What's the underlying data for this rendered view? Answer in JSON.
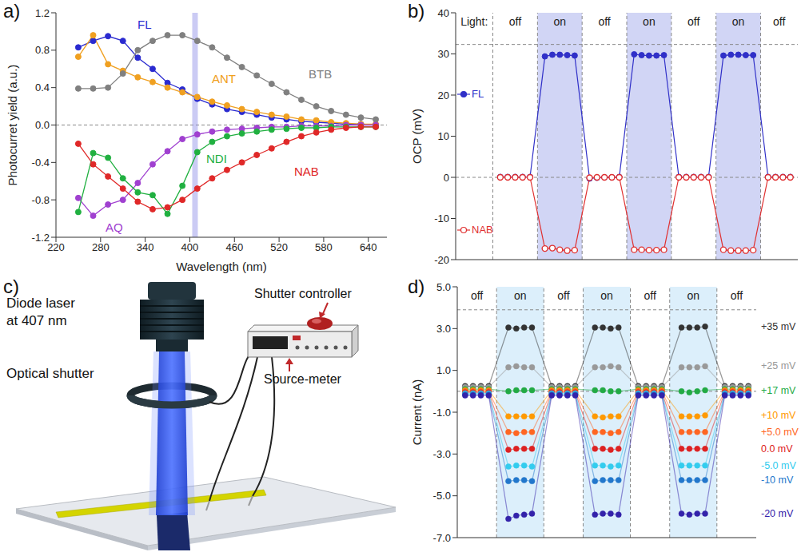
{
  "chart_data": [
    {
      "panel": "a)",
      "type": "line",
      "x_label": "Wavelength (nm)",
      "y_label": "Photocurret yield (a.u.)",
      "x": [
        250,
        270,
        290,
        310,
        330,
        350,
        370,
        390,
        410,
        430,
        450,
        470,
        490,
        510,
        530,
        550,
        570,
        590,
        610,
        630,
        650
      ],
      "series": [
        {
          "name": "FL",
          "color": "#2a2ad0",
          "marker": "circle",
          "values": [
            0.83,
            0.9,
            0.95,
            0.9,
            0.72,
            0.6,
            0.45,
            0.38,
            0.28,
            0.22,
            0.17,
            0.14,
            0.11,
            0.08,
            0.06,
            0.04,
            0.03,
            0.02,
            0.01,
            0.01,
            0.0
          ]
        },
        {
          "name": "ANT",
          "color": "#f0a020",
          "marker": "circle",
          "values": [
            0.73,
            0.96,
            0.65,
            0.58,
            0.51,
            0.46,
            0.4,
            0.35,
            0.3,
            0.25,
            0.21,
            0.17,
            0.14,
            0.11,
            0.09,
            0.06,
            0.05,
            0.03,
            0.02,
            0.01,
            0.01
          ]
        },
        {
          "name": "BTB",
          "color": "#808080",
          "marker": "circle",
          "values": [
            0.39,
            0.39,
            0.4,
            0.55,
            0.8,
            0.9,
            0.96,
            0.96,
            0.9,
            0.83,
            0.72,
            0.62,
            0.53,
            0.44,
            0.35,
            0.27,
            0.2,
            0.15,
            0.11,
            0.08,
            0.06
          ]
        },
        {
          "name": "AQ",
          "color": "#a040d0",
          "marker": "circle",
          "values": [
            -0.78,
            -0.97,
            -0.85,
            -0.8,
            -0.62,
            -0.42,
            -0.28,
            -0.15,
            -0.1,
            -0.07,
            -0.05,
            -0.04,
            -0.03,
            -0.02,
            -0.02,
            -0.01,
            -0.01,
            -0.01,
            0.0,
            0.0,
            0.0
          ]
        },
        {
          "name": "NDI",
          "color": "#20b040",
          "marker": "circle",
          "values": [
            -0.93,
            -0.3,
            -0.35,
            -0.57,
            -0.72,
            -0.75,
            -0.95,
            -0.65,
            -0.29,
            -0.18,
            -0.12,
            -0.09,
            -0.07,
            -0.05,
            -0.04,
            -0.03,
            -0.03,
            -0.02,
            -0.02,
            -0.02,
            -0.02
          ]
        },
        {
          "name": "NAB",
          "color": "#e02828",
          "marker": "circle",
          "values": [
            -0.2,
            -0.42,
            -0.55,
            -0.68,
            -0.82,
            -0.9,
            -0.88,
            -0.8,
            -0.68,
            -0.57,
            -0.48,
            -0.4,
            -0.32,
            -0.25,
            -0.18,
            -0.12,
            -0.08,
            -0.05,
            -0.03,
            -0.02,
            -0.02
          ]
        }
      ],
      "xlim": [
        220,
        665
      ],
      "xticks": [
        220,
        280,
        340,
        400,
        460,
        520,
        580,
        640
      ],
      "ylim": [
        -1.2,
        1.2
      ],
      "yticks": [
        -1.2,
        -0.8,
        -0.4,
        {
          "value": 0,
          "label": "0.0"
        },
        0.4,
        0.8,
        1.2
      ],
      "reference_lines": [
        0
      ],
      "highlight_x": 407
    },
    {
      "panel": "b)",
      "type": "line",
      "y_label": "OCP (mV)",
      "light_label": "Light:",
      "legend": "left",
      "tick_labels": "y",
      "x": [
        6,
        7,
        8,
        9,
        10,
        12,
        13,
        14,
        15,
        16,
        18,
        19,
        20,
        21,
        22,
        24,
        25,
        26,
        27,
        28,
        30,
        31,
        32,
        33,
        34,
        36,
        37,
        38,
        39,
        40,
        42,
        43,
        44,
        45
      ],
      "series": [
        {
          "name": "FL",
          "color": "#3030c8",
          "marker": "circle",
          "values": [
            0.1,
            0.1,
            0.1,
            0.1,
            0.1,
            29.4,
            29.8,
            29.8,
            29.7,
            29.6,
            -0.3,
            -0.1,
            0.0,
            0.0,
            0.1,
            29.9,
            29.7,
            29.6,
            29.6,
            29.7,
            0.1,
            0.1,
            0.1,
            0.1,
            0.1,
            29.6,
            29.8,
            29.8,
            29.7,
            29.7,
            0.1,
            0.1,
            0.1,
            0.1
          ]
        },
        {
          "name": "NAB",
          "color": "#e03030",
          "marker": "open_circle",
          "values": [
            0.0,
            0.0,
            0.0,
            0.0,
            0.0,
            -17.3,
            -17.2,
            -17.6,
            -17.8,
            -17.7,
            -0.1,
            0.0,
            0.0,
            0.0,
            0.0,
            -17.6,
            -17.6,
            -17.7,
            -17.7,
            -17.6,
            0.0,
            0.0,
            0.0,
            0.0,
            0.0,
            -17.6,
            -17.8,
            -17.8,
            -17.8,
            -17.7,
            0.0,
            0.0,
            0.0,
            0.0
          ]
        }
      ],
      "regions": [
        {
          "label": "off",
          "from": 5,
          "to": 11
        },
        {
          "label": "on",
          "from": 11,
          "to": 17,
          "color": "#c9cef3"
        },
        {
          "label": "off",
          "from": 17,
          "to": 23
        },
        {
          "label": "on",
          "from": 23,
          "to": 29,
          "color": "#c9cef3"
        },
        {
          "label": "off",
          "from": 29,
          "to": 35
        },
        {
          "label": "on",
          "from": 35,
          "to": 41,
          "color": "#c9cef3"
        },
        {
          "label": "off",
          "from": 41,
          "to": 46
        }
      ],
      "xlim": [
        0,
        46
      ],
      "ylim": [
        -20,
        40
      ],
      "yticks": [
        -20,
        -10,
        0,
        10,
        20,
        30,
        40
      ],
      "reference_lines": [
        0,
        32.3
      ]
    },
    {
      "panel": "d)",
      "type": "line",
      "y_label": "Current (nA)",
      "tick_labels": "y",
      "x": [
        1,
        2,
        3,
        4,
        6.5,
        7.5,
        8.5,
        9.5,
        12,
        13,
        14,
        15,
        17.5,
        18.5,
        19.5,
        20.5,
        23,
        24,
        25,
        26,
        28.5,
        29.5,
        30.5,
        31.5,
        34,
        35,
        36,
        37
      ],
      "series": [
        {
          "name": "+35 mV",
          "color": "#333333",
          "marker": "circle",
          "values": [
            0.25,
            0.25,
            0.25,
            0.25,
            3.05,
            3.0,
            3.05,
            3.05,
            0.25,
            0.25,
            0.25,
            0.25,
            3.05,
            3.05,
            3.0,
            3.05,
            0.25,
            0.25,
            0.25,
            0.25,
            3.05,
            3.05,
            3.05,
            3.1,
            0.25,
            0.25,
            0.25,
            0.25
          ]
        },
        {
          "name": "+25 mV",
          "color": "#999999",
          "marker": "circle",
          "values": [
            0.2,
            0.2,
            0.2,
            0.2,
            1.15,
            1.2,
            1.15,
            1.15,
            0.2,
            0.2,
            0.2,
            0.2,
            1.15,
            1.15,
            1.2,
            1.15,
            0.2,
            0.2,
            0.2,
            0.2,
            1.15,
            1.15,
            1.15,
            1.2,
            0.2,
            0.2,
            0.2,
            0.2
          ]
        },
        {
          "name": "+17 mV",
          "color": "#22aa44",
          "marker": "circle",
          "values": [
            0.1,
            0.1,
            0.1,
            0.1,
            0.0,
            0.05,
            0.05,
            0.05,
            0.1,
            0.1,
            0.1,
            0.1,
            0.05,
            0.05,
            0.0,
            0.0,
            0.1,
            0.1,
            0.1,
            0.1,
            0.0,
            -0.05,
            0.0,
            0.05,
            0.1,
            0.1,
            0.1,
            0.1
          ]
        },
        {
          "name": "+10 mV",
          "color": "#ff9900",
          "marker": "circle",
          "values": [
            0.05,
            0.05,
            0.05,
            0.05,
            -1.2,
            -1.2,
            -1.2,
            -1.2,
            0.05,
            0.05,
            0.05,
            0.05,
            -1.2,
            -1.25,
            -1.2,
            -1.2,
            0.05,
            0.05,
            0.05,
            0.05,
            -1.2,
            -1.2,
            -1.2,
            -1.15,
            0.05,
            0.05,
            0.05,
            0.05
          ]
        },
        {
          "name": "+5.0 mV",
          "color": "#ff6622",
          "marker": "circle",
          "values": [
            0.0,
            0.0,
            0.0,
            0.0,
            -1.95,
            -2.0,
            -1.95,
            -1.95,
            0.0,
            0.0,
            0.0,
            0.0,
            -1.95,
            -1.95,
            -2.0,
            -1.95,
            0.0,
            0.0,
            0.0,
            0.0,
            -1.95,
            -1.95,
            -1.95,
            -1.95,
            0.0,
            0.0,
            0.0,
            0.0
          ]
        },
        {
          "name": "0.0 mV",
          "color": "#dd2222",
          "marker": "circle",
          "values": [
            -0.05,
            -0.05,
            -0.05,
            -0.05,
            -2.8,
            -2.75,
            -2.75,
            -2.75,
            -0.05,
            -0.05,
            -0.05,
            -0.05,
            -2.75,
            -2.75,
            -2.8,
            -2.75,
            -0.05,
            -0.05,
            -0.05,
            -0.05,
            -2.75,
            -2.75,
            -2.75,
            -2.75,
            -0.05,
            -0.05,
            -0.05,
            -0.05
          ]
        },
        {
          "name": "-5.0 mV",
          "color": "#33ccee",
          "marker": "circle",
          "values": [
            -0.1,
            -0.1,
            -0.1,
            -0.1,
            -3.6,
            -3.55,
            -3.55,
            -3.6,
            -0.1,
            -0.1,
            -0.1,
            -0.1,
            -3.55,
            -3.55,
            -3.6,
            -3.55,
            -0.1,
            -0.1,
            -0.1,
            -0.1,
            -3.55,
            -3.55,
            -3.55,
            -3.55,
            -0.1,
            -0.1,
            -0.1,
            -0.1
          ]
        },
        {
          "name": "-10 mV",
          "color": "#2277cc",
          "marker": "circle",
          "values": [
            -0.15,
            -0.15,
            -0.15,
            -0.15,
            -4.3,
            -4.25,
            -4.25,
            -4.3,
            -0.15,
            -0.15,
            -0.15,
            -0.15,
            -4.3,
            -4.25,
            -4.25,
            -4.25,
            -0.15,
            -0.15,
            -0.15,
            -0.15,
            -4.25,
            -4.25,
            -4.25,
            -4.25,
            -0.15,
            -0.15,
            -0.15,
            -0.15
          ]
        },
        {
          "name": "-20 mV",
          "color": "#3322aa",
          "marker": "circle",
          "values": [
            -0.2,
            -0.2,
            -0.2,
            -0.2,
            -6.1,
            -5.95,
            -5.9,
            -5.85,
            -0.2,
            -0.2,
            -0.2,
            -0.2,
            -5.9,
            -5.85,
            -5.85,
            -5.9,
            -0.2,
            -0.2,
            -0.2,
            -0.2,
            -5.85,
            -5.9,
            -5.85,
            -5.85,
            -0.2,
            -0.2,
            -0.2,
            -0.2
          ]
        }
      ],
      "regions": [
        {
          "label": "off",
          "from": 0,
          "to": 5
        },
        {
          "label": "on",
          "from": 5,
          "to": 11,
          "color": "#d6ecfa"
        },
        {
          "label": "off",
          "from": 11,
          "to": 16
        },
        {
          "label": "on",
          "from": 16,
          "to": 22,
          "color": "#d6ecfa"
        },
        {
          "label": "off",
          "from": 22,
          "to": 27
        },
        {
          "label": "on",
          "from": 27,
          "to": 33,
          "color": "#d6ecfa"
        },
        {
          "label": "off",
          "from": 33,
          "to": 38
        }
      ],
      "xlim": [
        0,
        38
      ],
      "ylim": [
        -7,
        5
      ],
      "yticks": [
        {
          "value": -7,
          "label": "-7.0"
        },
        {
          "value": -5,
          "label": "-5.0"
        },
        {
          "value": -3,
          "label": "-3.0"
        },
        {
          "value": -1,
          "label": "-1.0"
        },
        {
          "value": 1,
          "label": "1.0"
        },
        {
          "value": 3,
          "label": "3.0"
        },
        {
          "value": 5,
          "label": "5.0"
        }
      ],
      "reference_lines": [
        0,
        3.9
      ]
    }
  ],
  "diagram": {
    "panel": "c)",
    "labels": {
      "laser": [
        "Diode laser",
        "at 407 nm"
      ],
      "shutter": "Optical shutter",
      "controller": "Shutter controller",
      "meter": "Source-meter"
    }
  }
}
